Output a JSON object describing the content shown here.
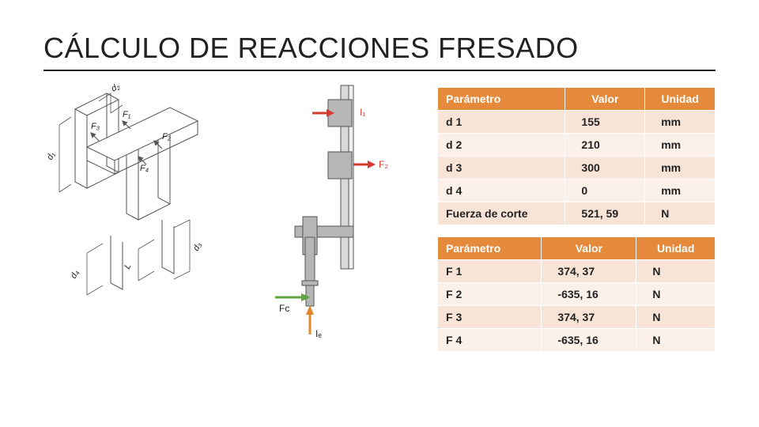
{
  "title": "CÁLCULO DE REACCIONES FRESADO",
  "table1": {
    "headers": [
      "Parámetro",
      "Valor",
      "Unidad"
    ],
    "rows": [
      [
        "d 1",
        "155",
        "mm"
      ],
      [
        "d 2",
        "210",
        "mm"
      ],
      [
        "d 3",
        "300",
        "mm"
      ],
      [
        "d 4",
        "0",
        "mm"
      ],
      [
        "Fuerza de corte",
        "521, 59",
        "N"
      ]
    ]
  },
  "table2": {
    "headers": [
      "Parámetro",
      "Valor",
      "Unidad"
    ],
    "rows": [
      [
        "F 1",
        "374, 37",
        "N"
      ],
      [
        "F 2",
        "-635, 16",
        "N"
      ],
      [
        "F 3",
        "374, 37",
        "N"
      ],
      [
        "F 4",
        "-635, 16",
        "N"
      ]
    ]
  },
  "iso_labels": {
    "d1": "d₁",
    "d2": "d₂",
    "d3": "d₃",
    "d4": "d₄",
    "L": "L",
    "F1": "F₁",
    "F2": "F₂",
    "F3": "F₃",
    "F4": "F₄"
  },
  "side_labels": {
    "I1": "I₁",
    "F2": "F₂",
    "Fc": "Fc",
    "Ie": "Iₑ"
  },
  "colors": {
    "header_bg": "#e58a3a",
    "row_odd": "#f7e4d6",
    "row_even": "#fbf1e9",
    "stroke": "#555",
    "red": "#d43a2f",
    "green": "#5fa641",
    "orange": "#e08a2e",
    "grey_fill": "#b6b6b6"
  }
}
